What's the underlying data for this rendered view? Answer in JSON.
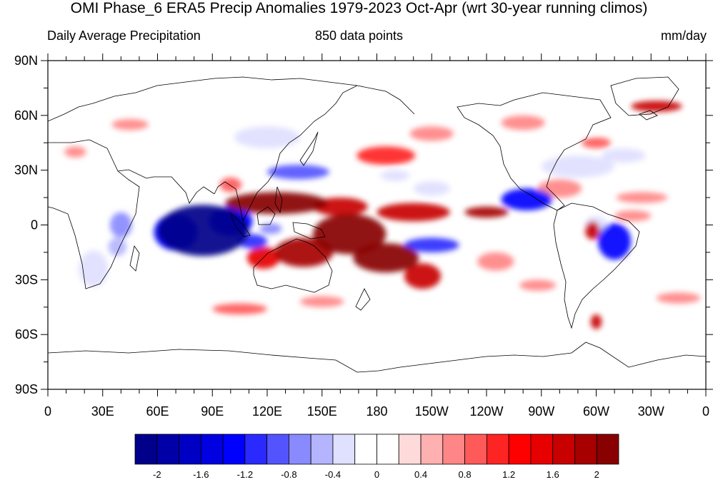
{
  "title": "OMI Phase_6 ERA5 Precip Anomalies 1979-2023 Oct-Apr (wrt 30-year running climos)",
  "subtitle_left": "Daily Average Precipitation",
  "subtitle_center": "850 data points",
  "subtitle_right": "mm/day",
  "lat_labels": [
    {
      "lat": 90,
      "label": "90N"
    },
    {
      "lat": 60,
      "label": "60N"
    },
    {
      "lat": 30,
      "label": "30N"
    },
    {
      "lat": 0,
      "label": "0"
    },
    {
      "lat": -30,
      "label": "30S"
    },
    {
      "lat": -60,
      "label": "60S"
    },
    {
      "lat": -90,
      "label": "90S"
    }
  ],
  "lon_labels": [
    {
      "lon": 0,
      "label": "0"
    },
    {
      "lon": 30,
      "label": "30E"
    },
    {
      "lon": 60,
      "label": "60E"
    },
    {
      "lon": 90,
      "label": "90E"
    },
    {
      "lon": 120,
      "label": "120E"
    },
    {
      "lon": 150,
      "label": "150E"
    },
    {
      "lon": 180,
      "label": "180"
    },
    {
      "lon": 210,
      "label": "150W"
    },
    {
      "lon": 240,
      "label": "120W"
    },
    {
      "lon": 270,
      "label": "90W"
    },
    {
      "lon": 300,
      "label": "60W"
    },
    {
      "lon": 330,
      "label": "30W"
    },
    {
      "lon": 360,
      "label": "0"
    }
  ],
  "colorbar": {
    "colors": [
      "#00008a",
      "#0000a6",
      "#0000c4",
      "#0000e0",
      "#0000ff",
      "#2a2aff",
      "#5454ff",
      "#8a8aff",
      "#b4b4ff",
      "#e0e0ff",
      "#ffffff",
      "#ffffff",
      "#ffdada",
      "#ffb0b0",
      "#ff8686",
      "#ff5a5a",
      "#ff2424",
      "#ff0000",
      "#e60000",
      "#c80000",
      "#a60000",
      "#880000"
    ],
    "tick_labels": [
      "-2",
      "-1.6",
      "-1.2",
      "-0.8",
      "-0.4",
      "0",
      "0.4",
      "0.8",
      "1.2",
      "1.6",
      "2"
    ]
  },
  "anomalies": [
    {
      "lon": 85,
      "lat": -3,
      "rlon": 25,
      "rlat": 14,
      "v": -2.2
    },
    {
      "lon": 70,
      "lat": -4,
      "rlon": 12,
      "rlat": 10,
      "v": -1.6
    },
    {
      "lon": 100,
      "lat": 2,
      "rlon": 12,
      "rlat": 8,
      "v": -1.6
    },
    {
      "lon": 112,
      "lat": -9,
      "rlon": 8,
      "rlat": 4,
      "v": -1.4
    },
    {
      "lon": 40,
      "lat": 0,
      "rlon": 6,
      "rlat": 7,
      "v": -1.0
    },
    {
      "lon": 38,
      "lat": -12,
      "rlon": 5,
      "rlat": 5,
      "v": -0.7
    },
    {
      "lon": 25,
      "lat": -24,
      "rlon": 8,
      "rlat": 10,
      "v": -0.5
    },
    {
      "lon": 122,
      "lat": -2,
      "rlon": 6,
      "rlat": 3,
      "v": -1.0
    },
    {
      "lon": 137,
      "lat": 29,
      "rlon": 17,
      "rlat": 4,
      "v": -1.1
    },
    {
      "lon": 210,
      "lat": -11,
      "rlon": 15,
      "rlat": 4,
      "v": -1.4
    },
    {
      "lon": 262,
      "lat": 14,
      "rlon": 14,
      "rlat": 6,
      "v": -1.6
    },
    {
      "lon": 310,
      "lat": -9,
      "rlon": 9,
      "rlat": 10,
      "v": -1.5
    },
    {
      "lon": 300,
      "lat": 0,
      "rlon": 6,
      "rlat": 5,
      "v": -0.6
    },
    {
      "lon": 290,
      "lat": 32,
      "rlon": 20,
      "rlat": 6,
      "v": -0.6
    },
    {
      "lon": 315,
      "lat": 38,
      "rlon": 12,
      "rlat": 4,
      "v": -0.5
    },
    {
      "lon": 210,
      "lat": 20,
      "rlon": 10,
      "rlat": 4,
      "v": -0.5
    },
    {
      "lon": 190,
      "lat": 27,
      "rlon": 8,
      "rlat": 3,
      "v": -0.5
    },
    {
      "lon": 120,
      "lat": 48,
      "rlon": 18,
      "rlat": 6,
      "v": -0.5
    },
    {
      "lon": 225,
      "lat": 65,
      "rlon": 25,
      "rlat": 6,
      "v": -0.4
    },
    {
      "lon": 290,
      "lat": 55,
      "rlon": 15,
      "rlat": 6,
      "v": -0.4
    },
    {
      "lon": 270,
      "lat": -46,
      "rlon": 20,
      "rlat": 4,
      "v": -0.4
    },
    {
      "lon": 290,
      "lat": -72,
      "rlon": 10,
      "rlat": 3,
      "v": -0.4
    },
    {
      "lon": 165,
      "lat": -5,
      "rlon": 20,
      "rlat": 11,
      "v": 2.3
    },
    {
      "lon": 185,
      "lat": -18,
      "rlon": 18,
      "rlat": 8,
      "v": 1.9
    },
    {
      "lon": 205,
      "lat": -28,
      "rlon": 10,
      "rlat": 7,
      "v": 1.5
    },
    {
      "lon": 140,
      "lat": -15,
      "rlon": 16,
      "rlat": 8,
      "v": 1.7
    },
    {
      "lon": 118,
      "lat": -18,
      "rlon": 9,
      "rlat": 6,
      "v": 1.2
    },
    {
      "lon": 125,
      "lat": 12,
      "rlon": 28,
      "rlat": 6,
      "v": 1.9
    },
    {
      "lon": 160,
      "lat": 10,
      "rlon": 15,
      "rlat": 5,
      "v": 1.4
    },
    {
      "lon": 200,
      "lat": 7,
      "rlon": 20,
      "rlat": 5,
      "v": 1.4
    },
    {
      "lon": 240,
      "lat": 7,
      "rlon": 12,
      "rlat": 3,
      "v": 1.6
    },
    {
      "lon": 298,
      "lat": -3,
      "rlon": 4,
      "rlat": 5,
      "v": 1.4
    },
    {
      "lon": 300,
      "lat": -53,
      "rlon": 3,
      "rlat": 4,
      "v": 1.5
    },
    {
      "lon": 333,
      "lat": 65,
      "rlon": 14,
      "rlat": 3,
      "v": 1.4
    },
    {
      "lon": 185,
      "lat": 38,
      "rlon": 16,
      "rlat": 5,
      "v": 0.9
    },
    {
      "lon": 210,
      "lat": 50,
      "rlon": 12,
      "rlat": 4,
      "v": 0.5
    },
    {
      "lon": 105,
      "lat": -46,
      "rlon": 15,
      "rlat": 3,
      "v": 0.7
    },
    {
      "lon": 150,
      "lat": -42,
      "rlon": 12,
      "rlat": 3,
      "v": 0.5
    },
    {
      "lon": 280,
      "lat": 20,
      "rlon": 12,
      "rlat": 5,
      "v": 0.4
    },
    {
      "lon": 268,
      "lat": -33,
      "rlon": 10,
      "rlat": 3,
      "v": 0.5
    },
    {
      "lon": 320,
      "lat": 5,
      "rlon": 10,
      "rlat": 3,
      "v": 0.5
    },
    {
      "lon": 245,
      "lat": -20,
      "rlon": 10,
      "rlat": 5,
      "v": 0.5
    },
    {
      "lon": 300,
      "lat": 45,
      "rlon": 8,
      "rlat": 3,
      "v": 0.6
    },
    {
      "lon": 260,
      "lat": 56,
      "rlon": 12,
      "rlat": 4,
      "v": 0.5
    },
    {
      "lon": 45,
      "lat": 55,
      "rlon": 10,
      "rlat": 3,
      "v": 0.4
    },
    {
      "lon": 15,
      "lat": 40,
      "rlon": 6,
      "rlat": 3,
      "v": 0.5
    },
    {
      "lon": 100,
      "lat": 22,
      "rlon": 6,
      "rlat": 4,
      "v": 0.6
    },
    {
      "lon": 325,
      "lat": 15,
      "rlon": 14,
      "rlat": 3,
      "v": 0.4
    },
    {
      "lon": 345,
      "lat": -40,
      "rlon": 12,
      "rlat": 3,
      "v": 0.4
    }
  ]
}
